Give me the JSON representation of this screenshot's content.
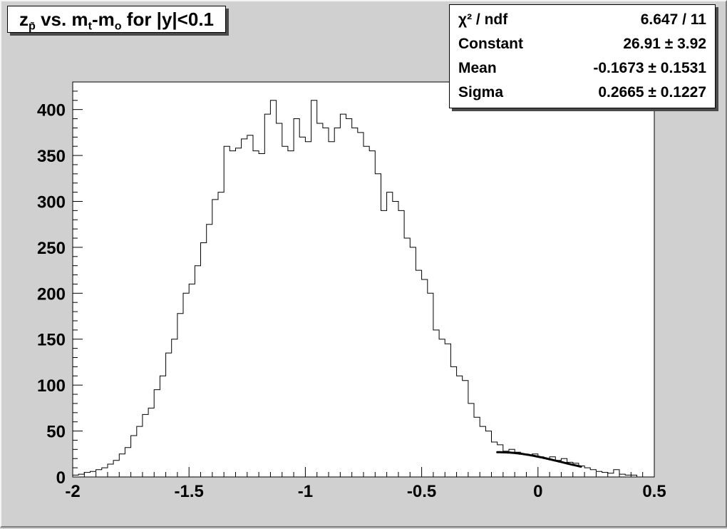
{
  "canvas": {
    "background": "#d0d0d0",
    "plot_background": "#ffffff",
    "line_color": "#000000"
  },
  "title": {
    "plain": "z_p̄ vs. m_t-m_o for |y|<0.1",
    "segments": [
      {
        "text": "z",
        "sub": false
      },
      {
        "text": "p̄",
        "sub": true
      },
      {
        "text": " vs. m",
        "sub": false
      },
      {
        "text": "t",
        "sub": true
      },
      {
        "text": "-m",
        "sub": false
      },
      {
        "text": "o",
        "sub": true
      },
      {
        "text": " for |y|<0.1",
        "sub": false
      }
    ]
  },
  "stats": {
    "rows": [
      {
        "label": "χ² / ndf",
        "value": "6.647 / 11"
      },
      {
        "label": "Constant",
        "value": "26.91 ± 3.92"
      },
      {
        "label": "Mean",
        "value": "-0.1673 ± 0.1531"
      },
      {
        "label": "Sigma",
        "value": "0.2665 ± 0.1227"
      }
    ]
  },
  "chart_data": {
    "type": "bar",
    "style": "step-histogram",
    "title": "z_p̄ vs. m_t-m_o for |y|<0.1",
    "xlabel": "",
    "ylabel": "",
    "xlim": [
      -2,
      0.5
    ],
    "ylim": [
      0,
      430
    ],
    "grid": false,
    "legend": "none",
    "x_ticks": {
      "major": [
        -2,
        -1.5,
        -1,
        -0.5,
        0,
        0.5
      ],
      "labels": [
        "-2",
        "-1.5",
        "-1",
        "-0.5",
        "0",
        "0.5"
      ],
      "minor_step": 0.05
    },
    "y_ticks": {
      "major": [
        0,
        50,
        100,
        150,
        200,
        250,
        300,
        350,
        400
      ],
      "labels": [
        "0",
        "50",
        "100",
        "150",
        "200",
        "250",
        "300",
        "350",
        "400"
      ],
      "minor_step": 10
    },
    "bins": {
      "x_start": -2.0,
      "width": 0.025,
      "values": [
        2,
        3,
        5,
        6,
        8,
        10,
        14,
        18,
        25,
        32,
        45,
        55,
        68,
        75,
        95,
        110,
        135,
        150,
        178,
        200,
        210,
        230,
        255,
        275,
        302,
        310,
        360,
        355,
        358,
        368,
        372,
        355,
        352,
        395,
        410,
        385,
        360,
        355,
        390,
        370,
        365,
        410,
        385,
        380,
        365,
        380,
        395,
        390,
        380,
        375,
        360,
        355,
        330,
        290,
        310,
        300,
        290,
        260,
        250,
        225,
        215,
        200,
        160,
        150,
        145,
        120,
        110,
        105,
        80,
        65,
        55,
        50,
        38,
        35,
        28,
        30,
        27,
        25,
        24,
        25,
        22,
        20,
        22,
        18,
        20,
        16,
        15,
        12,
        10,
        8,
        6,
        5,
        4,
        8,
        3,
        2,
        2,
        0,
        0,
        0
      ]
    },
    "fit": {
      "type": "gaussian",
      "constant": 26.91,
      "mean": -0.1673,
      "sigma": 0.2665,
      "x_range": [
        -0.175,
        0.185
      ],
      "line_width": 3
    }
  }
}
